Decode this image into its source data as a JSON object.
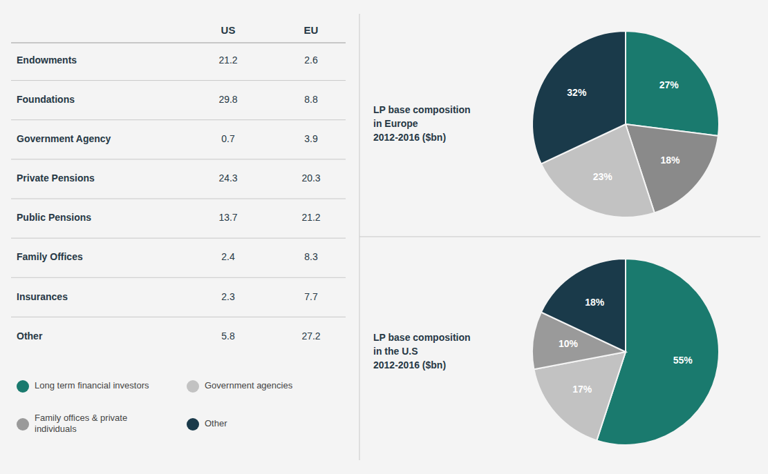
{
  "chart_data": [
    {
      "type": "table",
      "categories": [
        "Endowments",
        "Foundations",
        "Government Agency",
        "Private Pensions",
        "Public Pensions",
        "Family Offices",
        "Insurances",
        "Other"
      ],
      "series": [
        {
          "name": "US",
          "values": [
            21.2,
            29.8,
            0.7,
            24.3,
            13.7,
            2.4,
            2.3,
            5.8
          ]
        },
        {
          "name": "EU",
          "values": [
            2.6,
            8.8,
            3.9,
            20.3,
            21.2,
            8.3,
            7.7,
            27.2
          ]
        }
      ]
    },
    {
      "type": "pie",
      "title": "LP base composition\nin Europe\n2012-2016 ($bn)",
      "values": [
        27,
        18,
        23,
        32
      ],
      "value_labels": [
        "27%",
        "18%",
        "23%",
        "32%"
      ],
      "colors": [
        "#1a7a6e",
        "#8a8a8a",
        "#c2c2c2",
        "#1a3a4a"
      ],
      "data_labels": true
    },
    {
      "type": "pie",
      "title": "LP base composition\nin the U.S\n2012-2016 ($bn)",
      "categories": [
        "Long term financial investors",
        "Government agencies",
        "Family offices & private\nindividuals",
        "Other"
      ],
      "values": [
        55,
        17,
        10,
        18
      ],
      "value_labels": [
        "55%",
        "17%",
        "10%",
        "18%"
      ],
      "colors": [
        "#1a7a6e",
        "#c2c2c2",
        "#9a9a9a",
        "#1a3a4a"
      ],
      "data_labels": true,
      "legend": "bottom"
    }
  ]
}
